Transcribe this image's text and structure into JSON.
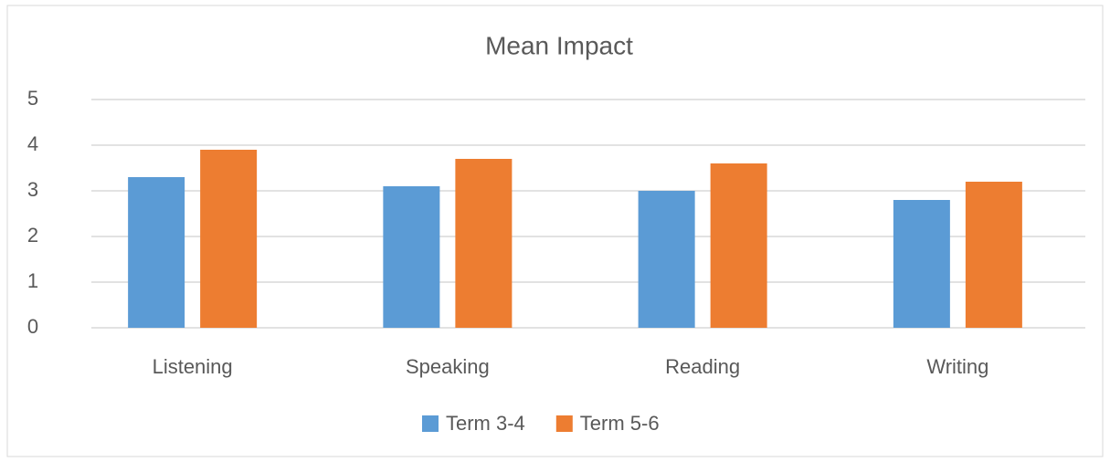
{
  "chart_data": {
    "type": "bar",
    "title": "Mean Impact",
    "categories": [
      "Listening",
      "Speaking",
      "Reading",
      "Writing"
    ],
    "series": [
      {
        "name": "Term 3-4",
        "color": "#5b9bd5",
        "values": [
          3.3,
          3.1,
          3.0,
          2.8
        ]
      },
      {
        "name": "Term 5-6",
        "color": "#ed7d31",
        "values": [
          3.9,
          3.7,
          3.6,
          3.2
        ]
      }
    ],
    "ylim": [
      0,
      5
    ],
    "yticks": [
      0,
      1,
      2,
      3,
      4,
      5
    ],
    "grid": true,
    "legend": "bottom"
  }
}
